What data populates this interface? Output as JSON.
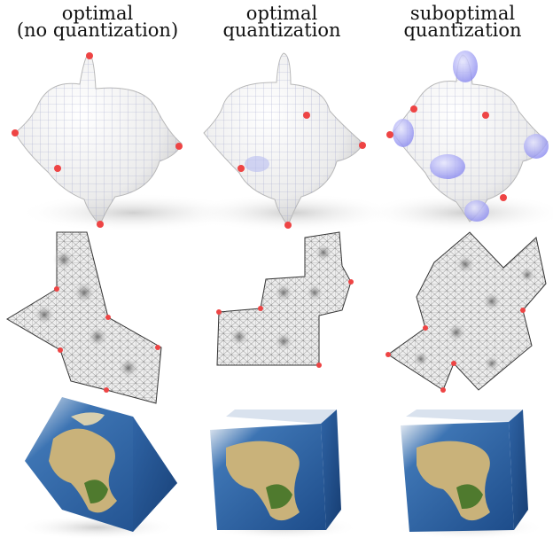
{
  "columns": [
    {
      "title_line1": "optimal",
      "title_line2": "(no quantization)"
    },
    {
      "title_line1": "optimal",
      "title_line2": "quantization"
    },
    {
      "title_line1": "suboptimal",
      "title_line2": "quantization"
    }
  ],
  "colors": {
    "singularity_marker": "#ee4444",
    "distortion_highlight": "#8c8cf0",
    "surface": "#f2f2f2",
    "quad_grid": "#9aa0c8",
    "mesh_line": "#555555",
    "ocean": "#2a5fa0",
    "land": "#c9b27a",
    "vegetation": "#4f7a2e"
  }
}
